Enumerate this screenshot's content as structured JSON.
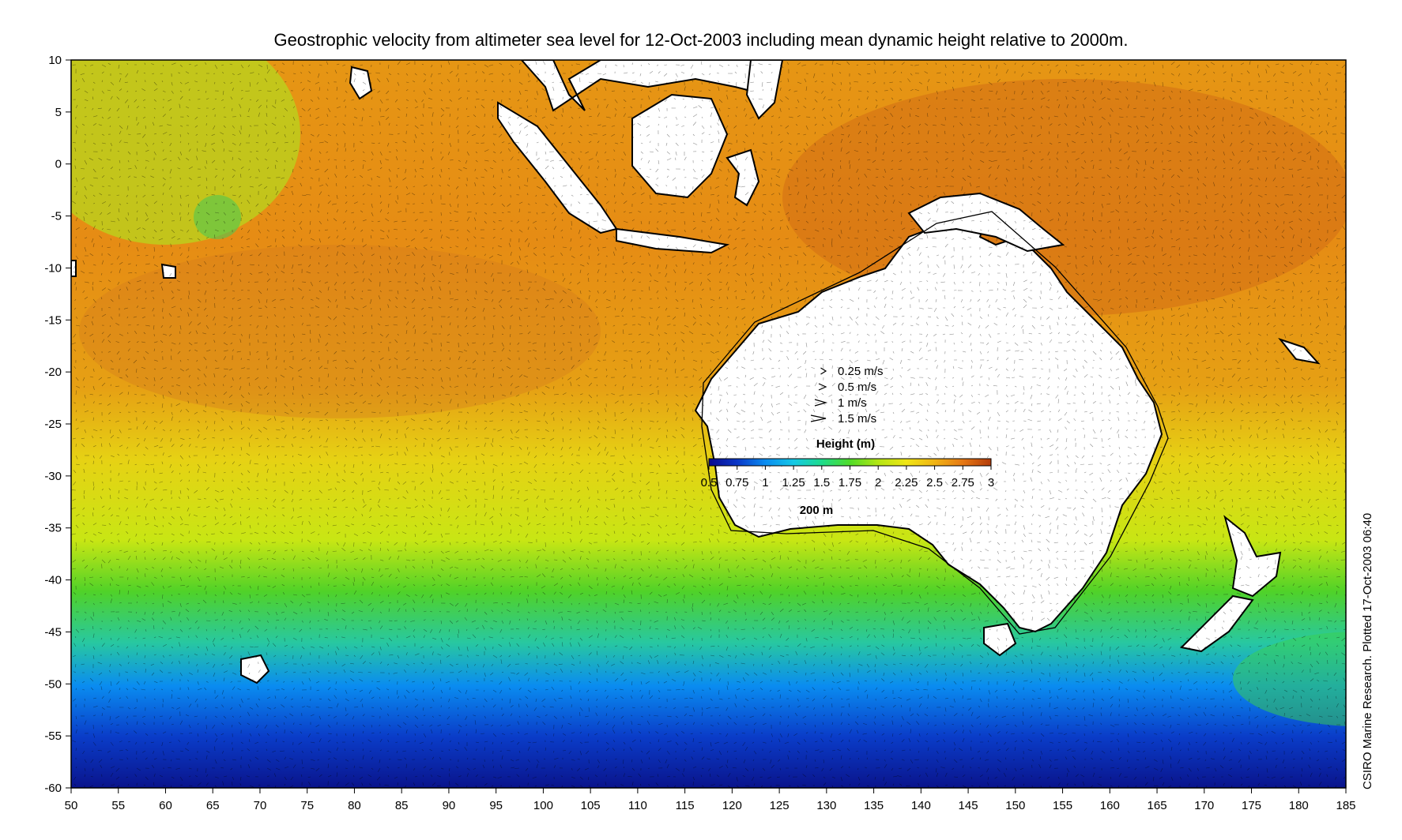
{
  "title": "Geostrophic velocity from altimeter sea level for 12-Oct-2003 including mean dynamic height relative to 2000m.",
  "credit": "CSIRO Marine Research. Plotted 17-Oct-2003 06:40",
  "axes": {
    "x": {
      "min": 50,
      "max": 185,
      "ticks": [
        50,
        55,
        60,
        65,
        70,
        75,
        80,
        85,
        90,
        95,
        100,
        105,
        110,
        115,
        120,
        125,
        130,
        135,
        140,
        145,
        150,
        155,
        160,
        165,
        170,
        175,
        180,
        185
      ]
    },
    "y": {
      "min": -60,
      "max": 10,
      "ticks": [
        10,
        5,
        0,
        -5,
        -10,
        -15,
        -20,
        -25,
        -30,
        -35,
        -40,
        -45,
        -50,
        -55,
        -60
      ]
    }
  },
  "velocity_key": [
    {
      "label": "0.25 m/s",
      "speed": 0.25
    },
    {
      "label": "0.5 m/s",
      "speed": 0.5
    },
    {
      "label": "1 m/s",
      "speed": 1
    },
    {
      "label": "1.5 m/s",
      "speed": 1.5
    }
  ],
  "colorbar": {
    "title": "Height (m)",
    "min": 0.5,
    "max": 3,
    "tick_labels": [
      "0.5",
      "0.75",
      "1",
      "1.25",
      "1.5",
      "1.75",
      "2",
      "2.25",
      "2.5",
      "2.75",
      "3"
    ],
    "colors": [
      "#0a0a8c",
      "#0a37c8",
      "#0a8cf0",
      "#14c8e6",
      "#1edc8c",
      "#50dc28",
      "#b4e614",
      "#f0e614",
      "#f0b414",
      "#e67814",
      "#b43c0a"
    ]
  },
  "contour_label": "200 m",
  "land_color": "#ffffff",
  "coast_color": "#000000"
}
